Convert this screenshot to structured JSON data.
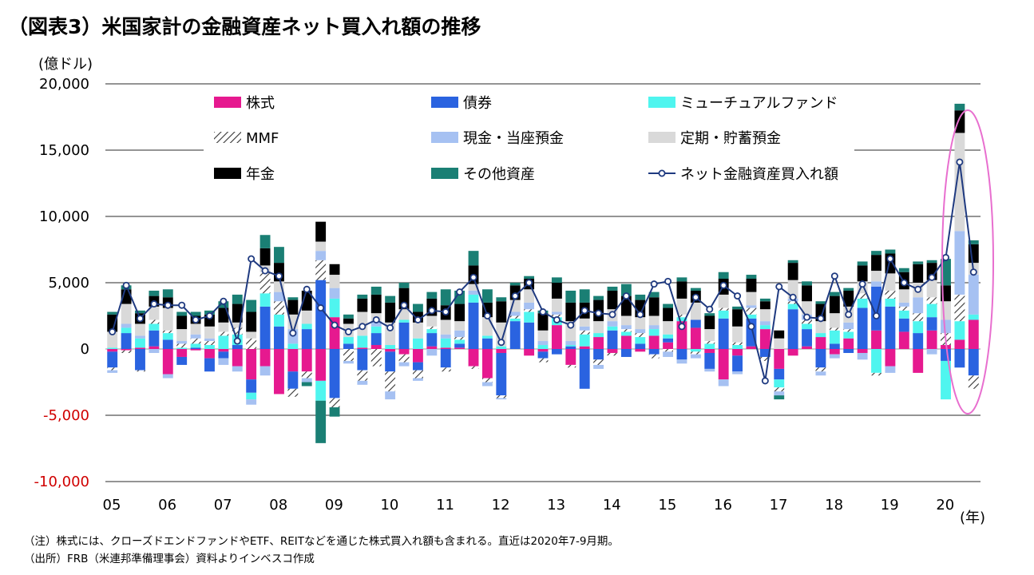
{
  "title": "（図表3）米国家計の金融資産ネット買入れ額の推移",
  "unit_label": "(億ドル)",
  "x_unit_label": "(年)",
  "notes": [
    "（注）株式には、クローズドエンドファンドやETF、REITなどを通じた株式買入れ額も含まれる。直近は2020年7-9月期。",
    "（出所）FRB（米連邦準備理事会）資料よりインベスコ作成"
  ],
  "colors": {
    "stocks": "#e6198f",
    "bonds": "#2a63e0",
    "mutual": "#4ff5ef",
    "mmf": "hatch",
    "cash": "#a6c1f2",
    "deposits": "#d9d9d9",
    "pension": "#000000",
    "other": "#1a7f74",
    "net_line": "#1f3a80",
    "highlight": "#e86fcf"
  },
  "chart_data": {
    "type": "bar",
    "stacked": true,
    "ylim": [
      -10000,
      20000
    ],
    "yticks": [
      "20,000",
      "15,000",
      "10,000",
      "5,000",
      "0",
      "-5,000",
      "-10,000"
    ],
    "ytick_values": [
      20000,
      15000,
      10000,
      5000,
      0,
      -5000,
      -10000
    ],
    "year_labels": [
      "05",
      "06",
      "07",
      "08",
      "09",
      "10",
      "11",
      "12",
      "13",
      "14",
      "15",
      "16",
      "17",
      "18",
      "19",
      "20"
    ],
    "legend": {
      "stocks": "株式",
      "bonds": "債券",
      "mutual": "ミューチュアルファンド",
      "mmf": "MMF",
      "cash": "現金・当座預金",
      "deposits": "定期・貯蓄預金",
      "pension": "年金",
      "other": "その他資産",
      "net": "ネット金融資産買入れ額"
    },
    "categories": [
      "05Q1",
      "05Q2",
      "05Q3",
      "05Q4",
      "06Q1",
      "06Q2",
      "06Q3",
      "06Q4",
      "07Q1",
      "07Q2",
      "07Q3",
      "07Q4",
      "08Q1",
      "08Q2",
      "08Q3",
      "08Q4",
      "09Q1",
      "09Q2",
      "09Q3",
      "09Q4",
      "10Q1",
      "10Q2",
      "10Q3",
      "10Q4",
      "11Q1",
      "11Q2",
      "11Q3",
      "11Q4",
      "12Q1",
      "12Q2",
      "12Q3",
      "12Q4",
      "13Q1",
      "13Q2",
      "13Q3",
      "13Q4",
      "14Q1",
      "14Q2",
      "14Q3",
      "14Q4",
      "15Q1",
      "15Q2",
      "15Q3",
      "15Q4",
      "16Q1",
      "16Q2",
      "16Q3",
      "16Q4",
      "17Q1",
      "17Q2",
      "17Q3",
      "17Q4",
      "18Q1",
      "18Q2",
      "18Q3",
      "18Q4",
      "19Q1",
      "19Q2",
      "19Q3",
      "19Q4",
      "20Q1",
      "20Q2",
      "20Q3"
    ],
    "series": [
      {
        "key": "stocks",
        "name": "株式",
        "values": [
          -200,
          -100,
          100,
          200,
          -1900,
          -600,
          -100,
          -700,
          -200,
          -1300,
          -2300,
          -1300,
          -3400,
          -1700,
          -1700,
          -2400,
          2400,
          0,
          100,
          300,
          -200,
          -400,
          -1000,
          200,
          100,
          100,
          -1300,
          -2200,
          -300,
          0,
          -500,
          -200,
          1800,
          -1200,
          200,
          900,
          -300,
          1000,
          -200,
          1000,
          500,
          2100,
          1600,
          -300,
          -2300,
          -500,
          200,
          1500,
          -1500,
          -500,
          200,
          900,
          -400,
          800,
          -300,
          1400,
          -1300,
          1300,
          -1800,
          1400,
          300,
          700,
          2200
        ]
      },
      {
        "key": "bonds",
        "name": "債券",
        "values": [
          -1200,
          1200,
          -1600,
          1200,
          700,
          -600,
          100,
          -1000,
          -500,
          300,
          -1000,
          3200,
          1700,
          -1300,
          1500,
          5200,
          -3700,
          400,
          -1600,
          900,
          -1500,
          2000,
          -600,
          1000,
          -1400,
          300,
          3500,
          800,
          -3200,
          2100,
          2000,
          -500,
          -400,
          200,
          -3000,
          -800,
          1400,
          -600,
          400,
          -400,
          300,
          -800,
          600,
          -1200,
          2300,
          -1200,
          2100,
          -600,
          -800,
          3000,
          1300,
          -1400,
          400,
          -300,
          3100,
          3300,
          3200,
          1000,
          1200,
          1000,
          -900,
          -1400,
          -2000
        ]
      },
      {
        "key": "mutual",
        "name": "ミューチュアルファンド",
        "values": [
          100,
          400,
          700,
          500,
          500,
          100,
          300,
          300,
          1000,
          800,
          -500,
          1000,
          900,
          400,
          400,
          -1500,
          1400,
          500,
          900,
          500,
          300,
          200,
          800,
          300,
          700,
          300,
          600,
          200,
          200,
          200,
          800,
          300,
          600,
          100,
          900,
          300,
          300,
          300,
          500,
          500,
          300,
          300,
          -200,
          400,
          600,
          300,
          300,
          300,
          -600,
          400,
          400,
          300,
          1000,
          500,
          700,
          -1800,
          600,
          600,
          900,
          1000,
          -2900,
          1400,
          400
        ]
      },
      {
        "key": "mmf",
        "name": "MMF",
        "values": [
          -200,
          -200,
          -100,
          300,
          200,
          300,
          400,
          300,
          300,
          500,
          800,
          1600,
          1000,
          -600,
          -500,
          1500,
          -700,
          -900,
          -800,
          -1300,
          -1500,
          -600,
          -600,
          200,
          -300,
          200,
          -200,
          -300,
          -200,
          200,
          200,
          -300,
          200,
          -200,
          300,
          -400,
          -200,
          200,
          300,
          -300,
          -200,
          200,
          -200,
          200,
          200,
          200,
          500,
          -300,
          -300,
          200,
          300,
          -300,
          200,
          200,
          400,
          -200,
          600,
          300,
          600,
          500,
          900,
          2000,
          -1000
        ]
      },
      {
        "key": "cash",
        "name": "現金・当座預金",
        "values": [
          -200,
          300,
          200,
          -300,
          -300,
          200,
          300,
          200,
          -500,
          -400,
          -400,
          -700,
          700,
          1100,
          -300,
          700,
          800,
          -200,
          -300,
          400,
          -600,
          -300,
          -200,
          -500,
          300,
          500,
          300,
          -300,
          -100,
          300,
          500,
          300,
          200,
          300,
          300,
          -300,
          400,
          300,
          300,
          300,
          -400,
          -300,
          -300,
          -200,
          -500,
          -200,
          200,
          300,
          -300,
          200,
          400,
          -300,
          -300,
          500,
          -500,
          400,
          -500,
          300,
          1200,
          -400,
          1000,
          4800,
          3000
        ]
      },
      {
        "key": "deposits",
        "name": "定期・貯蓄預金",
        "values": [
          1200,
          1500,
          900,
          1000,
          1700,
          900,
          800,
          900,
          700,
          400,
          500,
          500,
          800,
          1100,
          1000,
          700,
          1000,
          1000,
          1800,
          600,
          1700,
          800,
          1200,
          800,
          1100,
          700,
          500,
          1400,
          1800,
          900,
          1000,
          800,
          1000,
          1500,
          600,
          900,
          900,
          700,
          900,
          700,
          1000,
          1200,
          1300,
          900,
          1000,
          1200,
          1000,
          900,
          800,
          1400,
          1000,
          900,
          1100,
          1200,
          900,
          800,
          1300,
          1000,
          1100,
          1300,
          1400,
          7400,
          900
        ]
      },
      {
        "key": "pension",
        "name": "年金",
        "values": [
          1300,
          1100,
          800,
          800,
          800,
          1000,
          600,
          900,
          1100,
          1400,
          1500,
          1300,
          1400,
          1100,
          1500,
          1500,
          800,
          400,
          1000,
          1400,
          1500,
          1600,
          800,
          1300,
          1100,
          1300,
          1400,
          1100,
          1600,
          1100,
          800,
          1300,
          1200,
          1400,
          1200,
          1600,
          1400,
          1500,
          1300,
          1400,
          1000,
          1300,
          900,
          1000,
          1200,
          1300,
          1000,
          600,
          600,
          1300,
          1200,
          1300,
          1300,
          1200,
          1200,
          1200,
          1500,
          1300,
          1400,
          1300,
          1200,
          1700,
          1400
        ]
      },
      {
        "key": "other",
        "name": "その他資産",
        "values": [
          200,
          300,
          200,
          400,
          600,
          300,
          300,
          300,
          500,
          700,
          900,
          1000,
          1200,
          200,
          -300,
          -3200,
          -700,
          300,
          300,
          600,
          500,
          400,
          600,
          500,
          1200,
          1000,
          1100,
          1000,
          300,
          200,
          200,
          200,
          400,
          900,
          1000,
          300,
          300,
          900,
          400,
          400,
          300,
          300,
          200,
          200,
          500,
          200,
          300,
          200,
          -300,
          200,
          300,
          200,
          300,
          200,
          300,
          300,
          300,
          300,
          200,
          200,
          2000,
          500,
          300
        ]
      }
    ],
    "net_line": [
      1300,
      4800,
      2300,
      3400,
      3300,
      3300,
      2200,
      2500,
      3600,
      600,
      6800,
      5900,
      5500,
      1200,
      4500,
      3100,
      1800,
      1300,
      1700,
      2200,
      1600,
      3300,
      2200,
      2900,
      2800,
      4300,
      5400,
      2500,
      500,
      4000,
      5000,
      2800,
      2200,
      1800,
      2900,
      2700,
      2600,
      4000,
      2600,
      4900,
      5100,
      1700,
      3900,
      3000,
      4800,
      4000,
      1700,
      -2400,
      4700,
      3900,
      2400,
      2300,
      5500,
      2600,
      4900,
      2500,
      6800,
      5000,
      4500,
      5400,
      6900,
      14100,
      5800
    ]
  }
}
